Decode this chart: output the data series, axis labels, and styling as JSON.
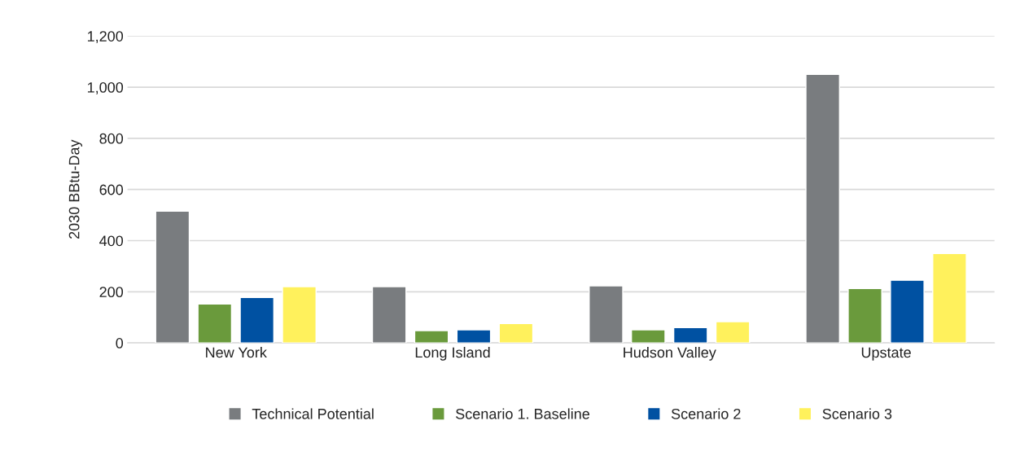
{
  "chart_data": {
    "type": "bar",
    "ylabel": "2030 BBtu-Day",
    "categories": [
      "New York",
      "Long Island",
      "Hudson Valley",
      "Upstate"
    ],
    "series": [
      {
        "name": "Technical Potential",
        "color": "#797c7f",
        "values": [
          515,
          220,
          223,
          1050
        ]
      },
      {
        "name": "Scenario 1. Baseline",
        "color": "#6a9a3c",
        "values": [
          152,
          48,
          51,
          213
        ]
      },
      {
        "name": "Scenario 2",
        "color": "#0051a2",
        "values": [
          178,
          51,
          60,
          245
        ]
      },
      {
        "name": "Scenario 3",
        "color": "#fff15c",
        "values": [
          220,
          76,
          83,
          350
        ]
      }
    ],
    "ylim": [
      0,
      1200
    ],
    "yticks": [
      {
        "value": 0,
        "label": "0"
      },
      {
        "value": 200,
        "label": "200"
      },
      {
        "value": 400,
        "label": "400"
      },
      {
        "value": 600,
        "label": "600"
      },
      {
        "value": 800,
        "label": "800"
      },
      {
        "value": 1000,
        "label": "1,000"
      },
      {
        "value": 1200,
        "label": "1,200"
      }
    ],
    "grid": "y",
    "legend": "bottom"
  }
}
